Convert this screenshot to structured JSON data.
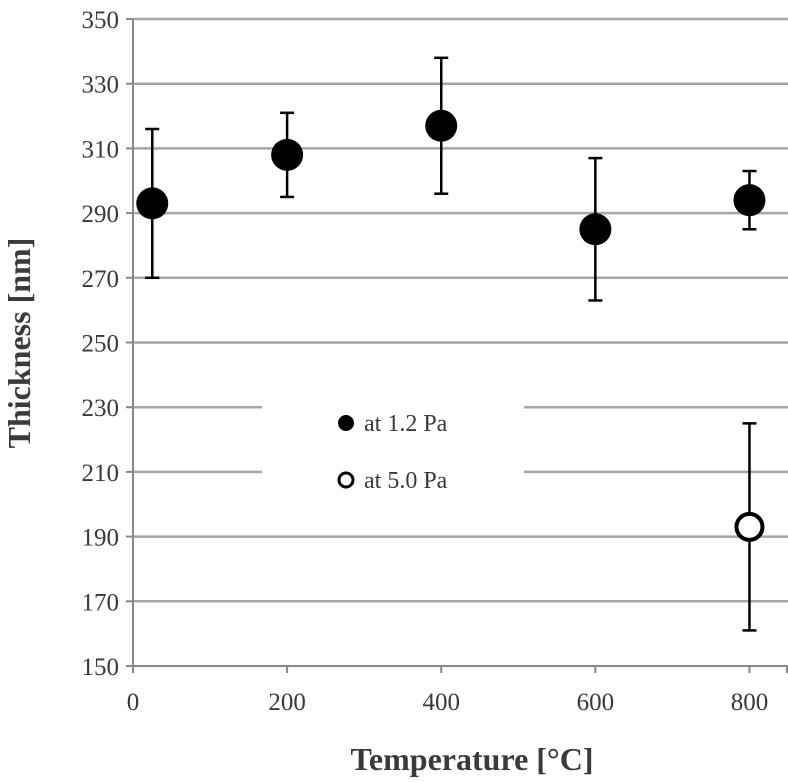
{
  "chart_data": {
    "type": "scatter",
    "title": "",
    "xlabel": "Temperature [°C]",
    "ylabel": "Thickness [nm]",
    "xlim": [
      0,
      850
    ],
    "ylim": [
      150,
      350
    ],
    "xticks": [
      0,
      200,
      400,
      600,
      800
    ],
    "yticks": [
      150,
      170,
      190,
      210,
      230,
      250,
      270,
      290,
      310,
      330,
      350
    ],
    "grid": "horizontal",
    "legend_placement": "center",
    "series": [
      {
        "name": "at 1.2 Pa",
        "marker": "filled-circle",
        "color": "#000000",
        "x": [
          25,
          200,
          400,
          600,
          800
        ],
        "y": [
          293,
          308,
          317,
          285,
          294
        ],
        "err_upper": [
          316,
          321,
          338,
          307,
          303
        ],
        "err_lower": [
          270,
          295,
          296,
          263,
          285
        ]
      },
      {
        "name": "at 5.0 Pa",
        "marker": "open-circle",
        "color": "#000000",
        "x": [
          800
        ],
        "y": [
          193
        ],
        "err_upper": [
          225
        ],
        "err_lower": [
          161
        ]
      }
    ],
    "colors": {
      "grid": "#a6a6a6",
      "axis": "#888888",
      "text": "#3a3a3a"
    }
  }
}
